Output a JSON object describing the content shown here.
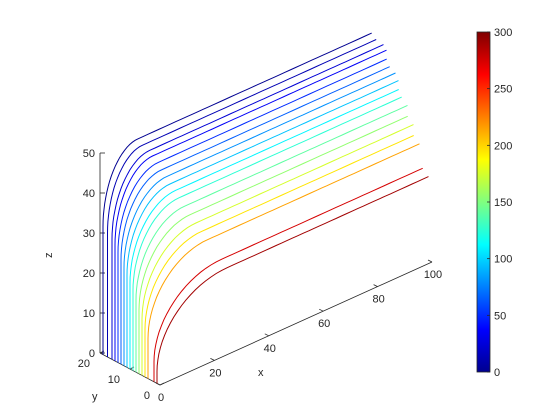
{
  "chart_data": {
    "type": "line",
    "subtype": "3d-line-plot-with-colorbar",
    "title": "",
    "xlabel": "x",
    "ylabel": "y",
    "zlabel": "z",
    "xlim": [
      0,
      100
    ],
    "ylim": [
      0,
      20
    ],
    "zlim": [
      0,
      50
    ],
    "x_ticks": [
      "0",
      "20",
      "40",
      "60",
      "80",
      "100"
    ],
    "y_ticks": [
      "0",
      "10",
      "20"
    ],
    "z_ticks": [
      "0",
      "10",
      "20",
      "30",
      "40",
      "50"
    ],
    "grid": false,
    "colormap": "jet",
    "colorbar": {
      "position": "right",
      "limits": [
        0,
        300
      ],
      "ticks": [
        "0",
        "50",
        "100",
        "150",
        "200",
        "250",
        "300"
      ]
    },
    "curve_shape": "vertical drop near x=0 then quarter-bend into a straight run along x to x=100 at constant y and z",
    "series": [
      {
        "value": 5,
        "y": 19.0,
        "z_top": 50.0,
        "bend_x": 2
      },
      {
        "value": 15,
        "y": 17.5,
        "z_top": 49.0,
        "bend_x": 2
      },
      {
        "value": 25,
        "y": 16.0,
        "z_top": 48.0,
        "bend_x": 3
      },
      {
        "value": 35,
        "y": 15.0,
        "z_top": 47.0,
        "bend_x": 3
      },
      {
        "value": 50,
        "y": 14.0,
        "z_top": 45.5,
        "bend_x": 4
      },
      {
        "value": 65,
        "y": 13.0,
        "z_top": 44.0,
        "bend_x": 4
      },
      {
        "value": 80,
        "y": 12.0,
        "z_top": 42.5,
        "bend_x": 5
      },
      {
        "value": 95,
        "y": 11.0,
        "z_top": 41.0,
        "bend_x": 5
      },
      {
        "value": 110,
        "y": 10.0,
        "z_top": 39.5,
        "bend_x": 6
      },
      {
        "value": 125,
        "y": 9.0,
        "z_top": 38.0,
        "bend_x": 6
      },
      {
        "value": 140,
        "y": 8.0,
        "z_top": 36.0,
        "bend_x": 7
      },
      {
        "value": 155,
        "y": 7.0,
        "z_top": 34.0,
        "bend_x": 8
      },
      {
        "value": 175,
        "y": 6.0,
        "z_top": 32.0,
        "bend_x": 9
      },
      {
        "value": 195,
        "y": 5.0,
        "z_top": 30.0,
        "bend_x": 10
      },
      {
        "value": 215,
        "y": 4.0,
        "z_top": 28.0,
        "bend_x": 11
      },
      {
        "value": 275,
        "y": 2.0,
        "z_top": 23.0,
        "bend_x": 14
      },
      {
        "value": 290,
        "y": 1.0,
        "z_top": 21.0,
        "bend_x": 15
      }
    ]
  }
}
